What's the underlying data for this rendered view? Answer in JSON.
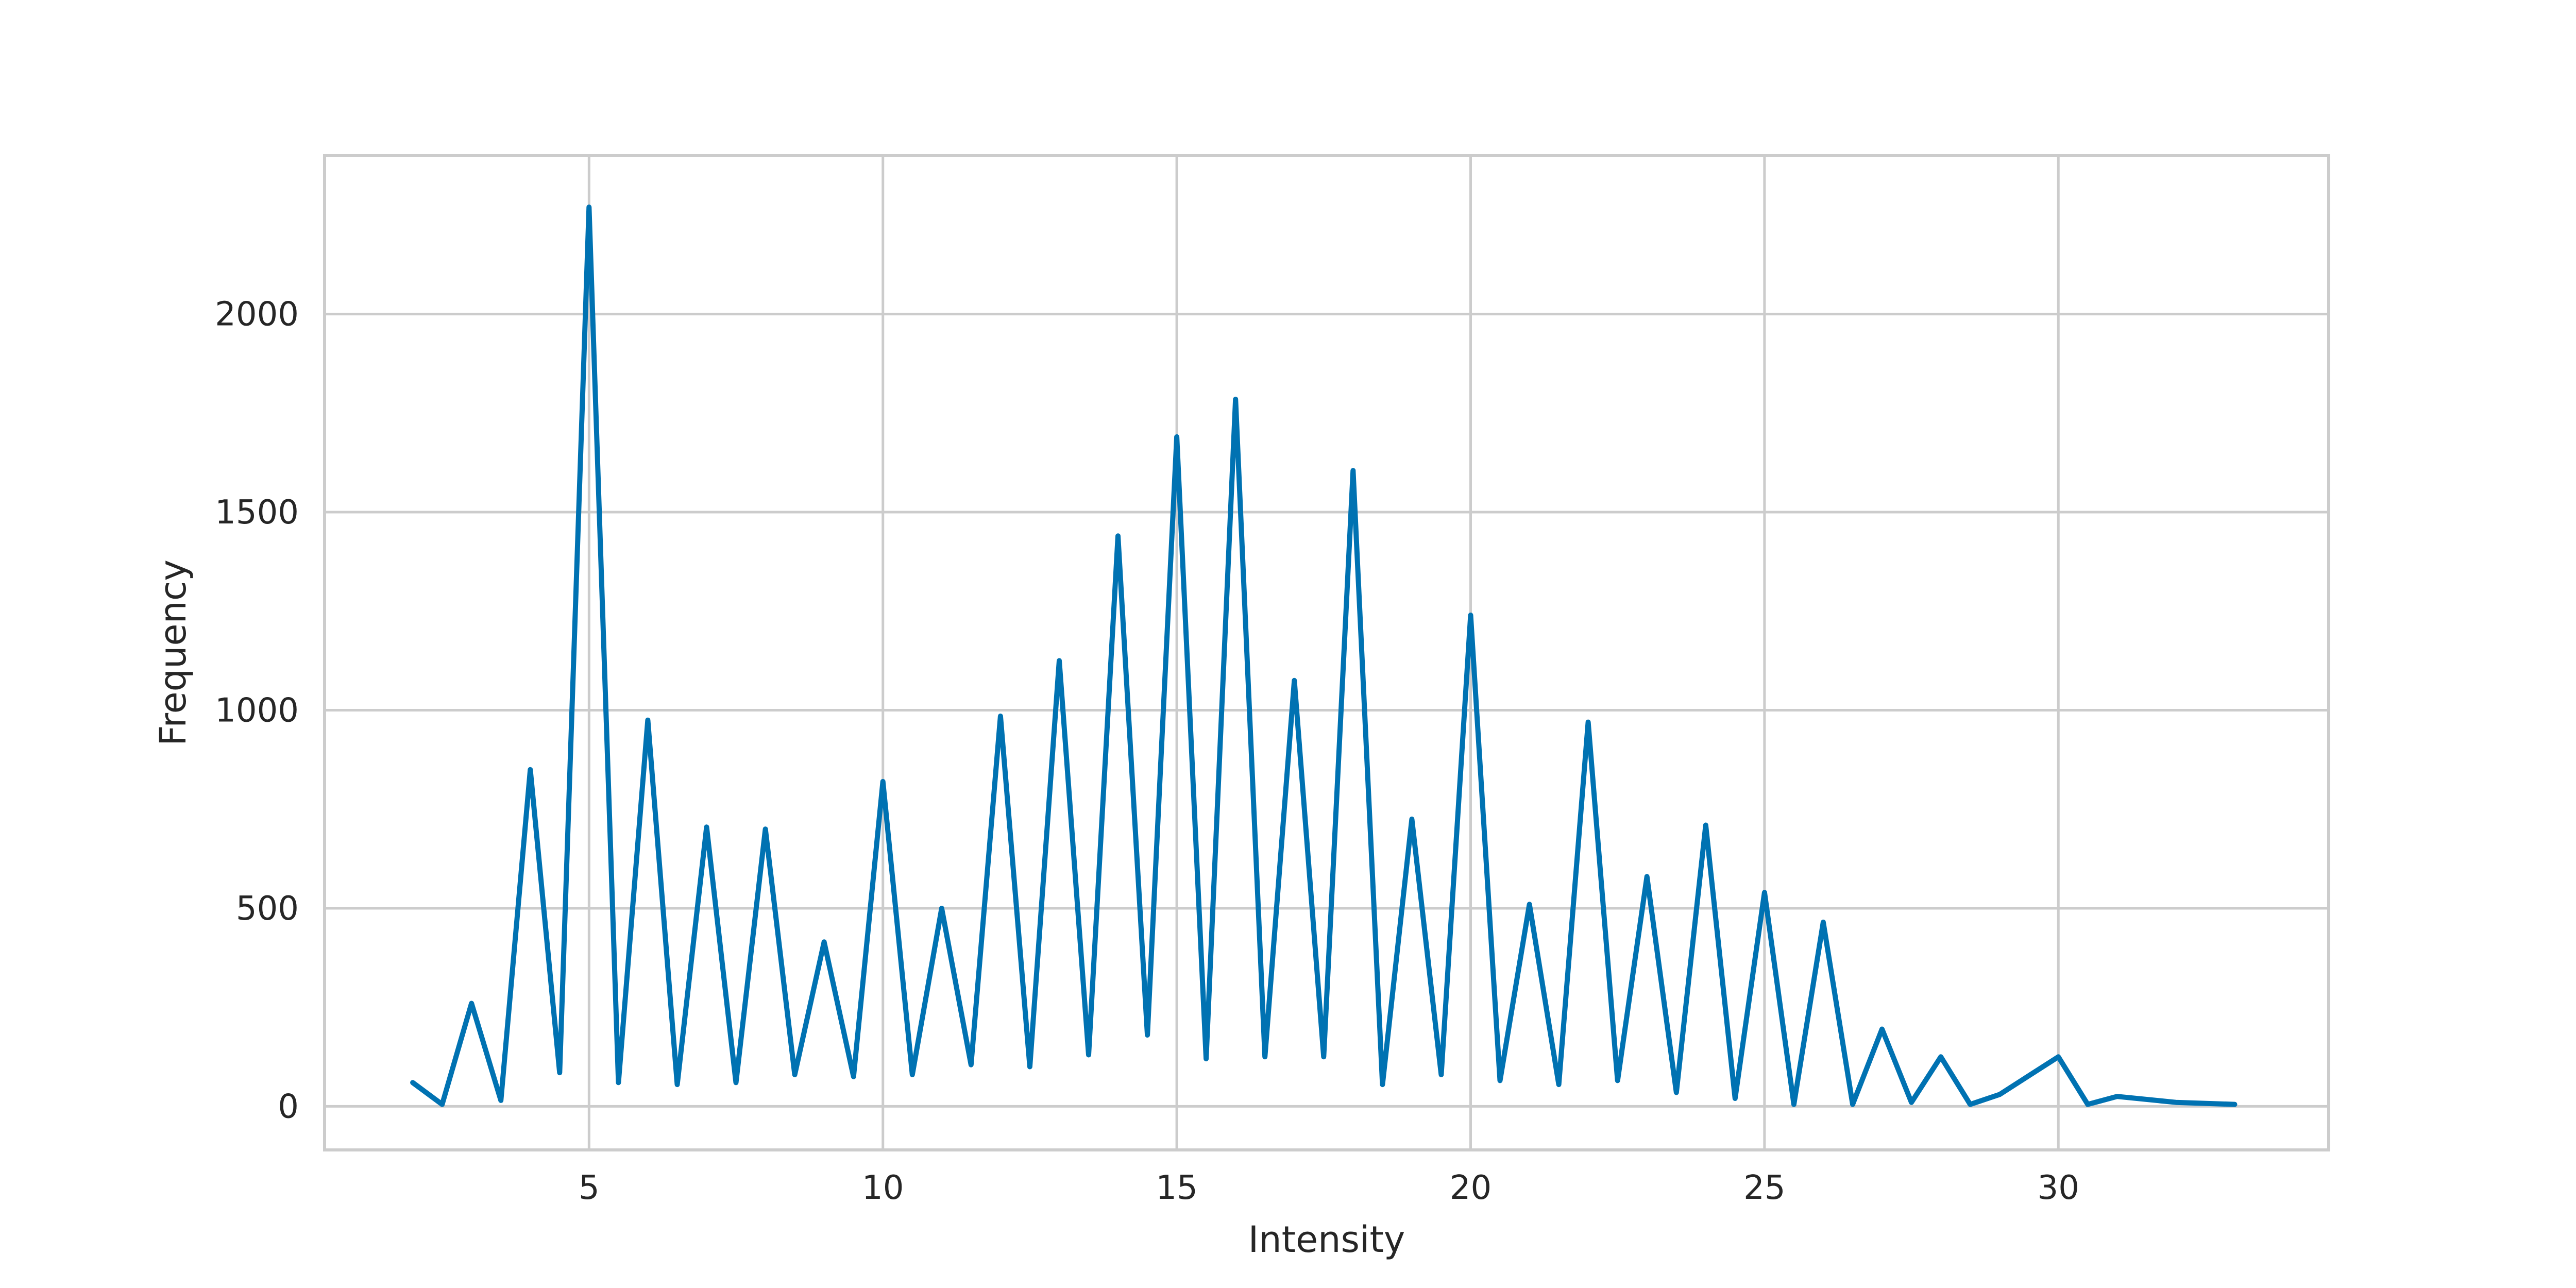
{
  "chart_data": {
    "type": "line",
    "title": "",
    "xlabel": "Intensity",
    "ylabel": "Frequency",
    "xlim": [
      0.5,
      34.6
    ],
    "ylim": [
      -110,
      2400
    ],
    "xticks": [
      5,
      10,
      15,
      20,
      25,
      30
    ],
    "yticks": [
      0,
      500,
      1000,
      1500,
      2000
    ],
    "grid": true,
    "line_color": "#0072b2",
    "grid_color": "#cccccc",
    "spine_color": "#cccccc",
    "series": [
      {
        "x": [
          2,
          2.5,
          3,
          3.5,
          4,
          4.5,
          5,
          5.5,
          6,
          6.5,
          7,
          7.5,
          8,
          8.5,
          9,
          9.5,
          10,
          10.5,
          11,
          11.5,
          12,
          12.5,
          13,
          13.5,
          14,
          14.5,
          15,
          15.5,
          16,
          16.5,
          17,
          17.5,
          18,
          18.5,
          19,
          19.5,
          20,
          20.5,
          21,
          21.5,
          22,
          22.5,
          23,
          23.5,
          24,
          24.5,
          25,
          25.5,
          26,
          26.5,
          27,
          27.5,
          28,
          28.5,
          29,
          30,
          30.5,
          31,
          32,
          33
        ],
        "values": [
          60,
          5,
          260,
          15,
          850,
          85,
          2270,
          60,
          975,
          55,
          705,
          60,
          700,
          80,
          415,
          75,
          820,
          80,
          500,
          105,
          985,
          100,
          1125,
          130,
          1440,
          180,
          1690,
          120,
          1785,
          125,
          1075,
          125,
          1605,
          55,
          725,
          80,
          1240,
          65,
          510,
          55,
          970,
          65,
          580,
          35,
          710,
          20,
          540,
          5,
          465,
          5,
          195,
          10,
          125,
          5,
          30,
          125,
          5,
          25,
          10,
          5
        ]
      }
    ]
  }
}
